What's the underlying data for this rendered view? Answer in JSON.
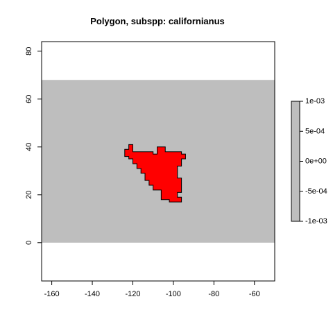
{
  "chart_data": {
    "type": "heatmap",
    "title": "Polygon, subspp: californianus",
    "xlabel": "",
    "ylabel": "",
    "xlim": [
      -165,
      -50
    ],
    "ylim": [
      -16,
      84
    ],
    "x_ticks": [
      -160,
      -140,
      -120,
      -100,
      -80,
      -60
    ],
    "y_ticks": [
      0,
      20,
      40,
      60,
      80
    ],
    "x_tick_labels": [
      "-160",
      "-140",
      "-120",
      "-100",
      "-80",
      "-60"
    ],
    "y_tick_labels": [
      "0",
      "20",
      "40",
      "60",
      "80"
    ],
    "raster_extent": {
      "xmin": -165,
      "xmax": -50,
      "ymin": 0,
      "ymax": 68
    },
    "raster_color": "#bebebe",
    "polygon": {
      "fill": "#ff0000",
      "stroke": "#000000",
      "vertices": [
        [
          -124,
          39
        ],
        [
          -122,
          39
        ],
        [
          -122,
          41
        ],
        [
          -120,
          41
        ],
        [
          -120,
          38
        ],
        [
          -110,
          38
        ],
        [
          -110,
          37
        ],
        [
          -108,
          37
        ],
        [
          -108,
          40
        ],
        [
          -104,
          40
        ],
        [
          -104,
          38
        ],
        [
          -96,
          38
        ],
        [
          -96,
          37
        ],
        [
          -94,
          37
        ],
        [
          -94,
          35
        ],
        [
          -96,
          35
        ],
        [
          -96,
          32
        ],
        [
          -98,
          32
        ],
        [
          -98,
          27
        ],
        [
          -96,
          27
        ],
        [
          -96,
          21
        ],
        [
          -98,
          21
        ],
        [
          -98,
          19
        ],
        [
          -96,
          19
        ],
        [
          -96,
          17
        ],
        [
          -102,
          17
        ],
        [
          -102,
          18
        ],
        [
          -106,
          18
        ],
        [
          -106,
          22
        ],
        [
          -110,
          22
        ],
        [
          -110,
          24
        ],
        [
          -112,
          24
        ],
        [
          -112,
          26
        ],
        [
          -114,
          26
        ],
        [
          -114,
          29
        ],
        [
          -116,
          29
        ],
        [
          -116,
          31
        ],
        [
          -118,
          31
        ],
        [
          -118,
          33
        ],
        [
          -120,
          33
        ],
        [
          -120,
          35
        ],
        [
          -122,
          35
        ],
        [
          -122,
          36
        ],
        [
          -124,
          36
        ]
      ]
    },
    "legend": {
      "position": "right",
      "range": [
        -0.001,
        0.001
      ],
      "ticks": [
        0.001,
        0.0005,
        0,
        -0.0005,
        -0.001
      ],
      "tick_labels": [
        "1e-03",
        "5e-04",
        "0e+00",
        "-5e-04",
        "-1e-03"
      ],
      "color": "#bebebe"
    },
    "grid": false
  }
}
